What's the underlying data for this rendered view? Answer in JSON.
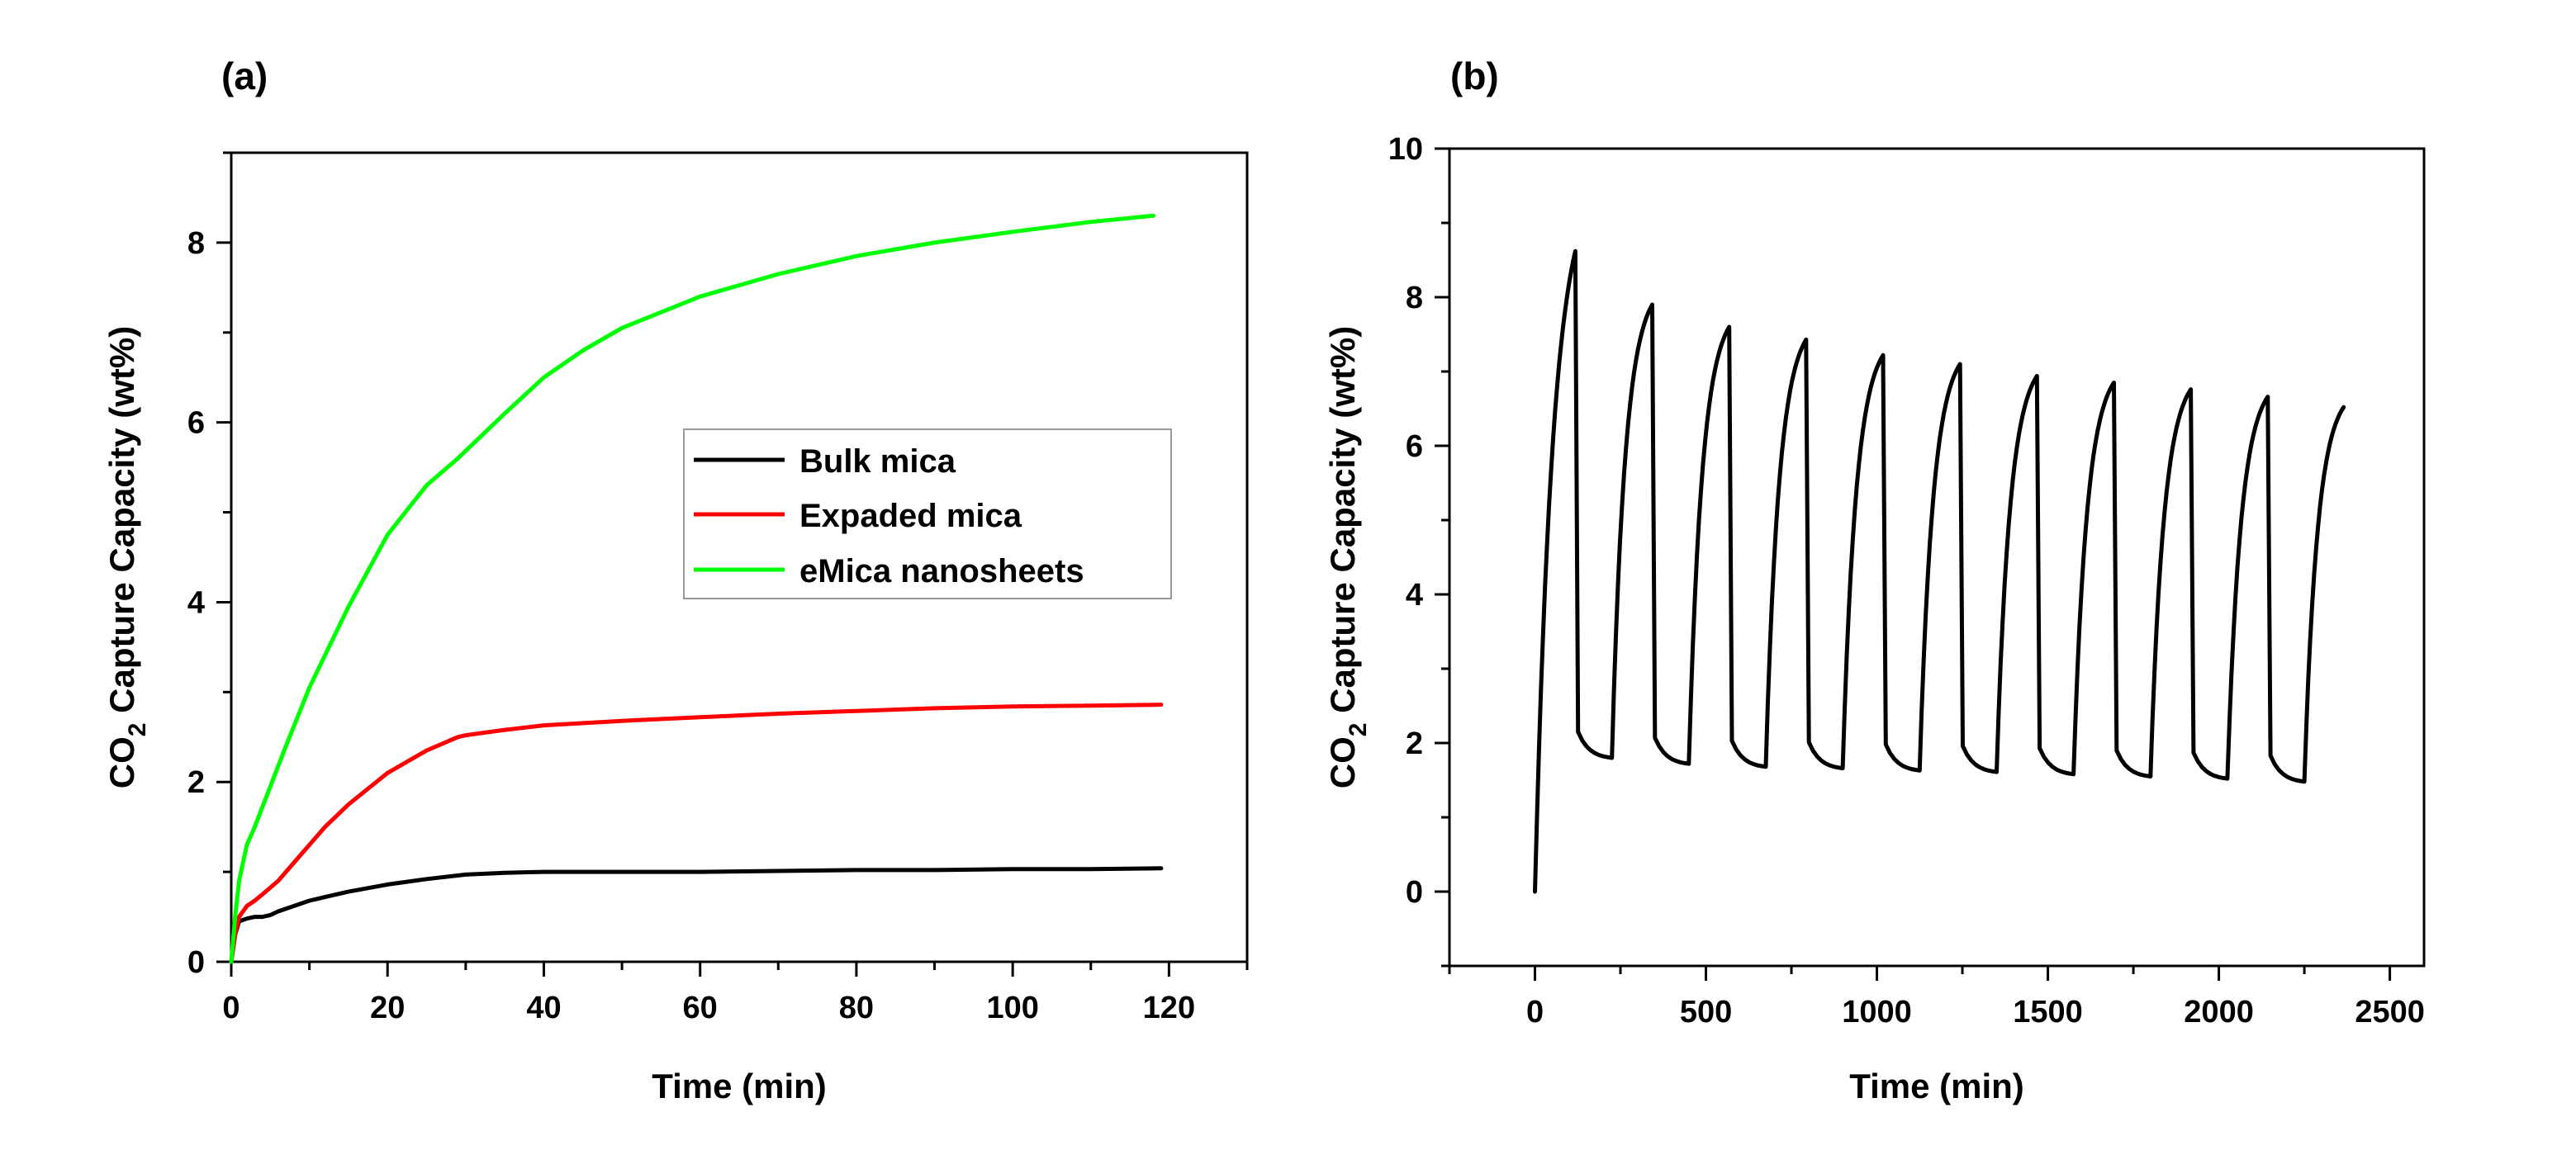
{
  "chart_data": [
    {
      "type": "line",
      "panel_label": "(a)",
      "title": "",
      "xlabel": "Time (min)",
      "ylabel_parts": [
        "CO",
        "2",
        " Capture Capacity (wt%)"
      ],
      "xlim": [
        0,
        130
      ],
      "ylim": [
        0,
        9
      ],
      "xticks": [
        0,
        20,
        40,
        60,
        80,
        100,
        120
      ],
      "yticks": [
        0,
        2,
        4,
        6,
        8
      ],
      "grid": false,
      "legend_position": "center-right",
      "series": [
        {
          "name": "Bulk mica",
          "color": "#000000",
          "x": [
            0,
            0.5,
            1,
            2,
            3,
            4,
            5,
            6,
            8,
            10,
            12,
            15,
            20,
            25,
            30,
            35,
            40,
            50,
            60,
            70,
            80,
            90,
            100,
            110,
            119
          ],
          "y": [
            0,
            0.3,
            0.45,
            0.48,
            0.5,
            0.5,
            0.52,
            0.56,
            0.62,
            0.68,
            0.72,
            0.78,
            0.86,
            0.92,
            0.97,
            0.99,
            1.0,
            1.0,
            1.0,
            1.01,
            1.02,
            1.02,
            1.03,
            1.03,
            1.04
          ]
        },
        {
          "name": "Expaded mica",
          "color": "#ff0000",
          "x": [
            0,
            0.5,
            1,
            2,
            3,
            4,
            6,
            8,
            10,
            12,
            15,
            20,
            25,
            29,
            30,
            35,
            40,
            50,
            60,
            70,
            80,
            90,
            100,
            110,
            119
          ],
          "y": [
            0,
            0.3,
            0.5,
            0.62,
            0.68,
            0.75,
            0.9,
            1.1,
            1.3,
            1.5,
            1.75,
            2.1,
            2.35,
            2.5,
            2.52,
            2.58,
            2.63,
            2.68,
            2.72,
            2.76,
            2.79,
            2.82,
            2.84,
            2.85,
            2.86
          ]
        },
        {
          "name": "eMica nanosheets",
          "color": "#00ff00",
          "x": [
            0,
            0.5,
            1,
            2,
            3,
            5,
            7,
            10,
            15,
            20,
            25,
            29,
            35,
            40,
            45,
            50,
            60,
            70,
            80,
            90,
            100,
            110,
            118
          ],
          "y": [
            0,
            0.5,
            0.9,
            1.3,
            1.5,
            1.95,
            2.4,
            3.05,
            3.95,
            4.75,
            5.3,
            5.6,
            6.1,
            6.5,
            6.8,
            7.05,
            7.4,
            7.65,
            7.85,
            8.0,
            8.12,
            8.23,
            8.3
          ]
        }
      ]
    },
    {
      "type": "line",
      "panel_label": "(b)",
      "title": "",
      "xlabel": "Time (min)",
      "ylabel_parts": [
        "CO",
        "2",
        " Capture Capacity (wt%)"
      ],
      "xlim": [
        -250,
        2600
      ],
      "ylim": [
        -1,
        10
      ],
      "xticks": [
        0,
        500,
        1000,
        1500,
        2000,
        2500
      ],
      "yticks": [
        0,
        2,
        4,
        6,
        8,
        10
      ],
      "grid": false,
      "cycles": {
        "count": 10,
        "period": 225,
        "adsorption_minutes": 118,
        "peaks": [
          8.62,
          7.9,
          7.6,
          7.43,
          7.22,
          7.1,
          6.94,
          6.85,
          6.76,
          6.66
        ],
        "minimums": [
          1.8,
          1.72,
          1.68,
          1.66,
          1.63,
          1.61,
          1.58,
          1.55,
          1.52,
          1.48
        ],
        "final_point": {
          "x": 2365,
          "y": 6.52
        }
      }
    }
  ]
}
